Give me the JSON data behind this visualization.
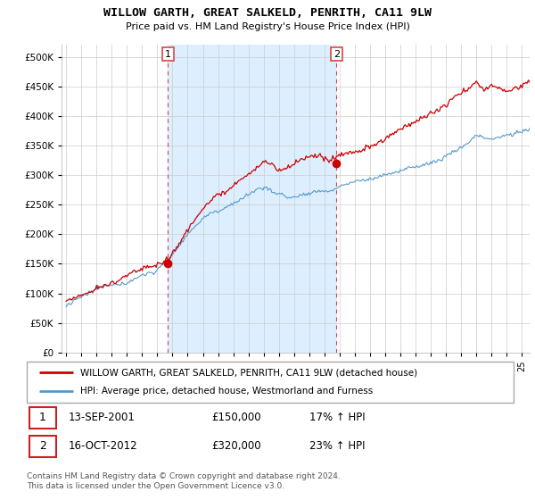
{
  "title": "WILLOW GARTH, GREAT SALKELD, PENRITH, CA11 9LW",
  "subtitle": "Price paid vs. HM Land Registry's House Price Index (HPI)",
  "ylim": [
    0,
    520000
  ],
  "yticks": [
    0,
    50000,
    100000,
    150000,
    200000,
    250000,
    300000,
    350000,
    400000,
    450000,
    500000
  ],
  "ytick_labels": [
    "£0",
    "£50K",
    "£100K",
    "£150K",
    "£200K",
    "£250K",
    "£300K",
    "£350K",
    "£400K",
    "£450K",
    "£500K"
  ],
  "sale1": {
    "date_num": 2001.71,
    "price": 150000,
    "label": "1"
  },
  "sale2": {
    "date_num": 2012.79,
    "price": 320000,
    "label": "2"
  },
  "legend_line1": "WILLOW GARTH, GREAT SALKELD, PENRITH, CA11 9LW (detached house)",
  "legend_line2": "HPI: Average price, detached house, Westmorland and Furness",
  "table_row1": [
    "1",
    "13-SEP-2001",
    "£150,000",
    "17% ↑ HPI"
  ],
  "table_row2": [
    "2",
    "16-OCT-2012",
    "£320,000",
    "23% ↑ HPI"
  ],
  "footer": "Contains HM Land Registry data © Crown copyright and database right 2024.\nThis data is licensed under the Open Government Licence v3.0.",
  "line_color_red": "#cc0000",
  "line_color_blue": "#5599cc",
  "vline_color": "#dd4444",
  "shade_color": "#ddeeff",
  "background_color": "#ffffff",
  "grid_color": "#cccccc",
  "xlim_left": 1994.7,
  "xlim_right": 2025.5
}
